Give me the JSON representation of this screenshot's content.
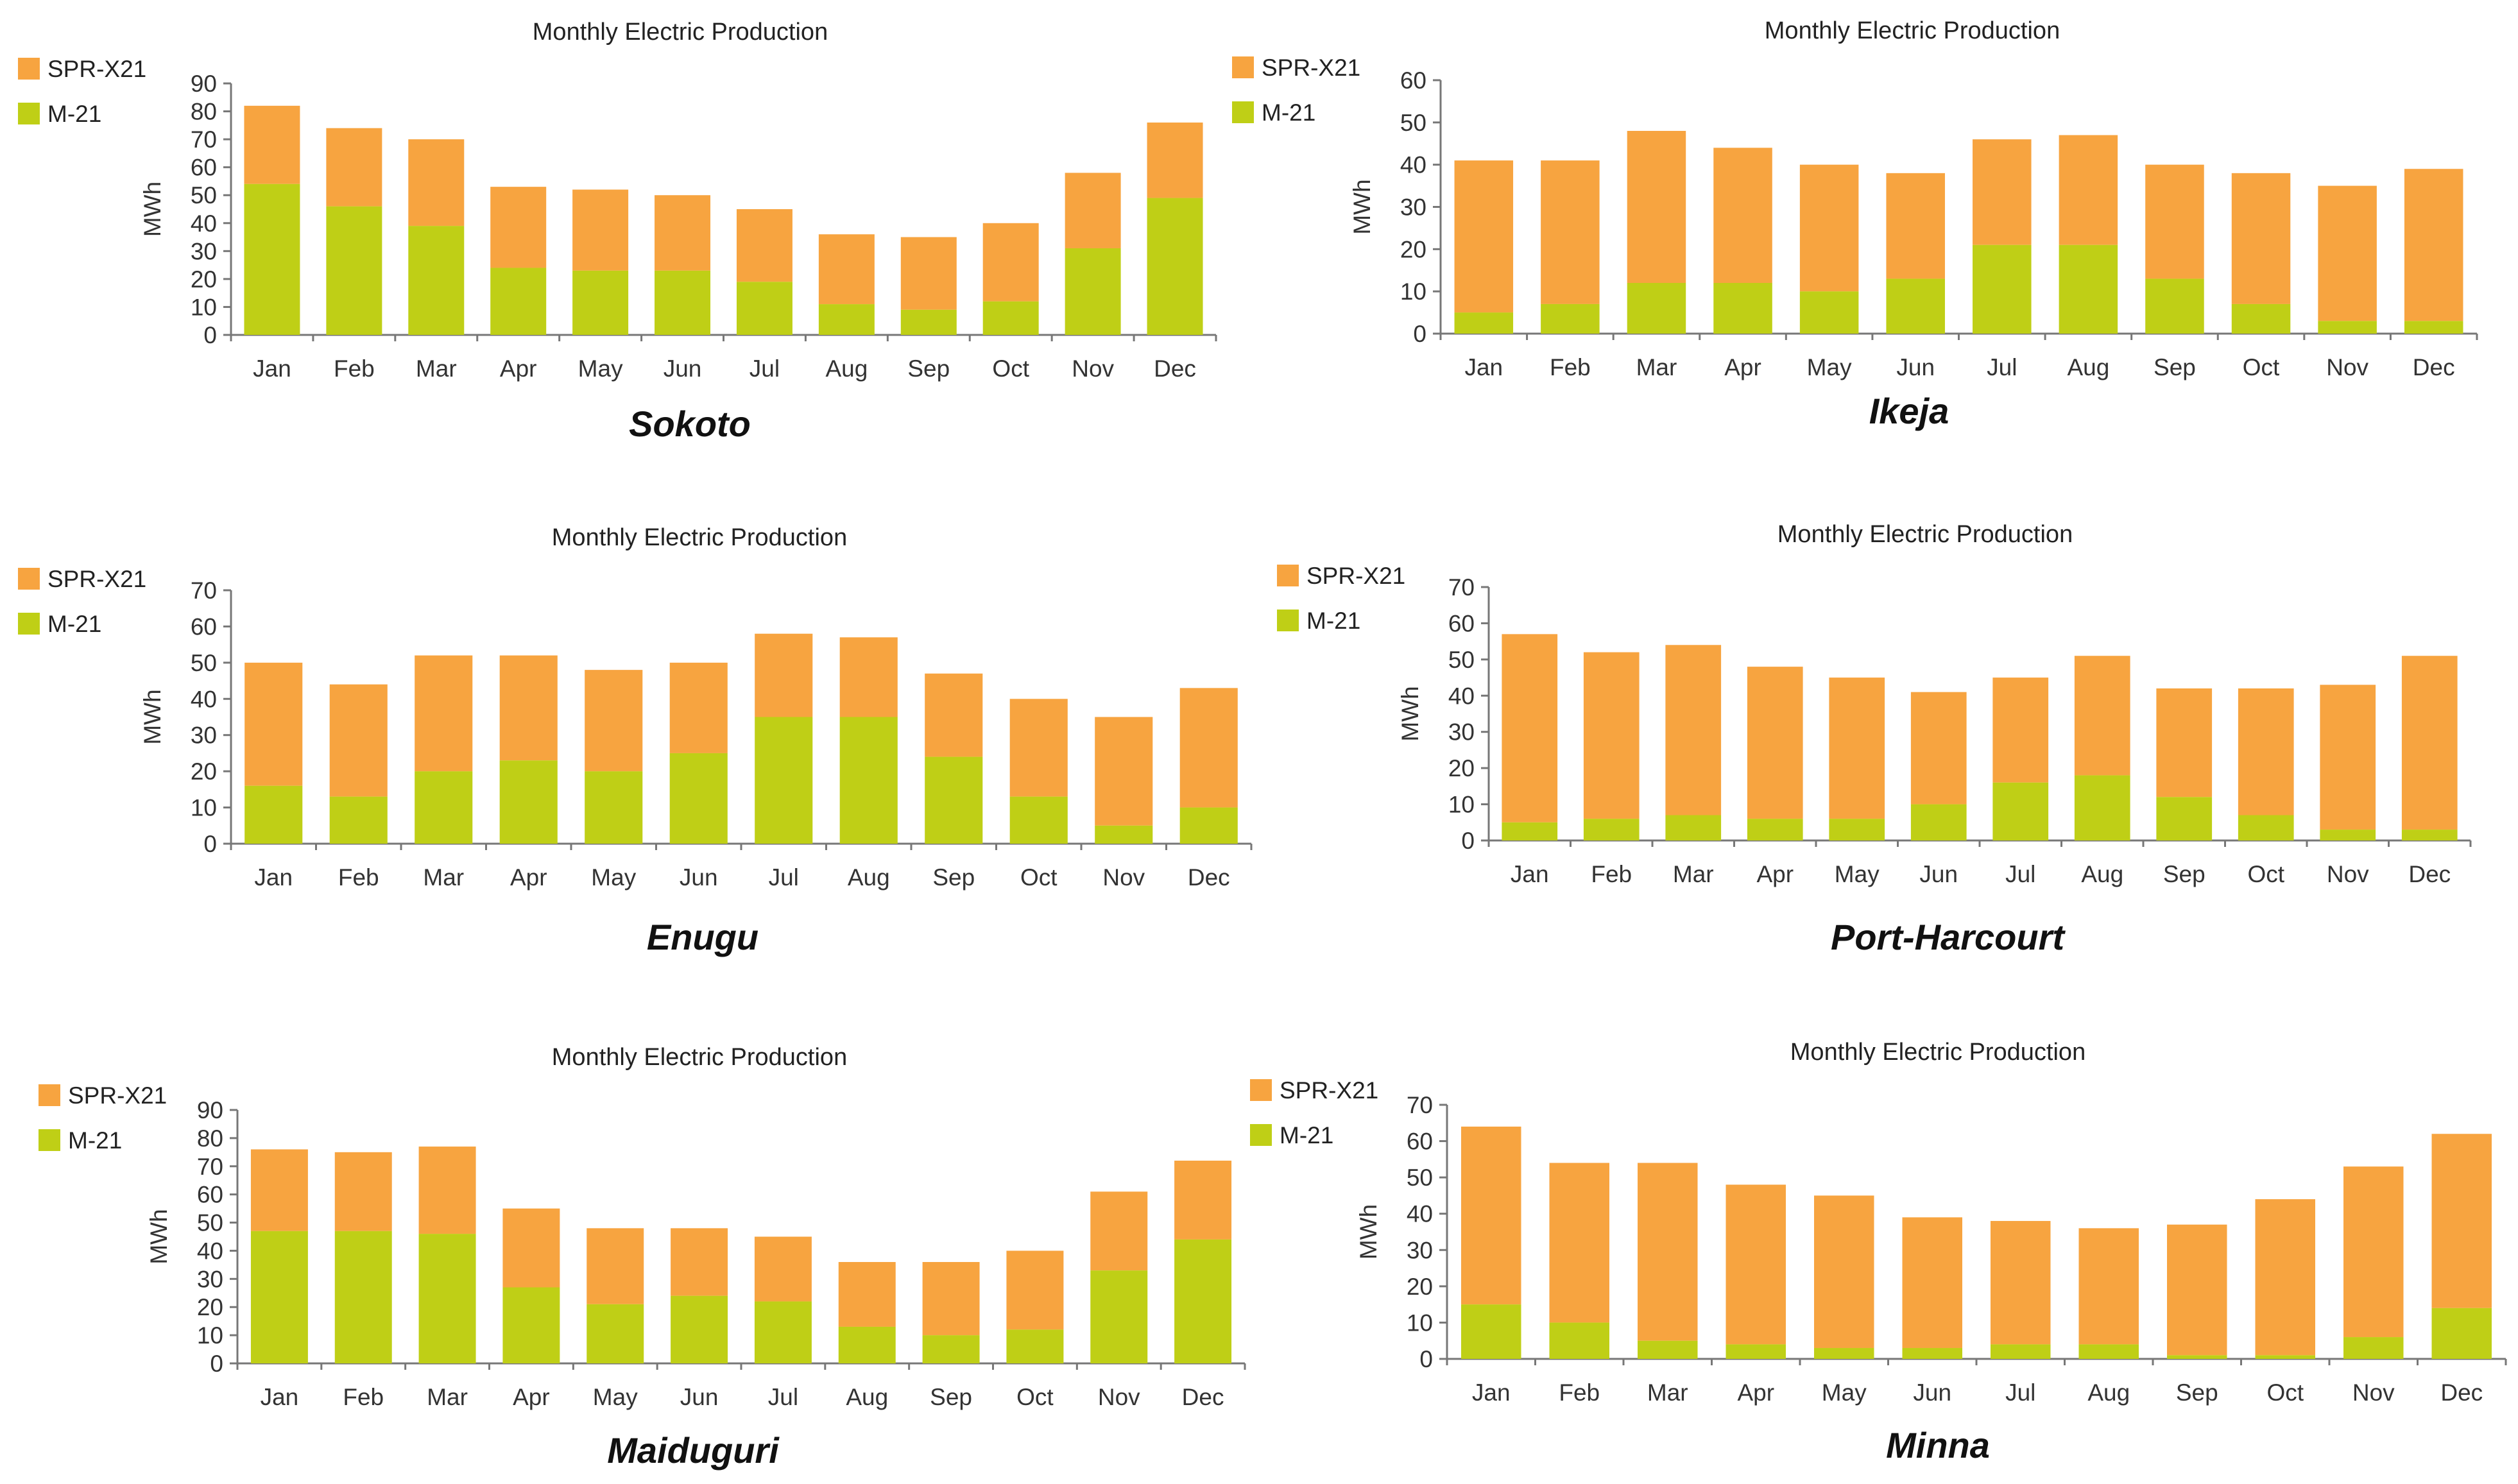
{
  "colors": {
    "spr": "#f7a440",
    "m21": "#bfcf16",
    "axis": "#777777"
  },
  "chart_data": [
    {
      "type": "bar",
      "stacked": true,
      "city": "Sokoto",
      "title": "Monthly Electric Production",
      "ylabel": "MWh",
      "xlabel": "",
      "ylim": [
        0,
        90
      ],
      "yticks": [
        "0",
        "10",
        "20",
        "30",
        "40",
        "50",
        "60",
        "70",
        "80",
        "90"
      ],
      "legend": [
        "SPR-X21",
        "M-21"
      ],
      "legend_position": "left",
      "categories": [
        "Jan",
        "Feb",
        "Mar",
        "Apr",
        "May",
        "Jun",
        "Jul",
        "Aug",
        "Sep",
        "Oct",
        "Nov",
        "Dec"
      ],
      "series": [
        {
          "name": "M-21",
          "values": [
            54,
            46,
            39,
            24,
            23,
            23,
            19,
            11,
            9,
            12,
            31,
            49
          ]
        },
        {
          "name": "SPR-X21",
          "values": [
            28,
            28,
            31,
            29,
            29,
            27,
            26,
            25,
            26,
            28,
            27,
            27
          ]
        }
      ]
    },
    {
      "type": "bar",
      "stacked": true,
      "city": "Ikeja",
      "title": "Monthly Electric Production",
      "ylabel": "MWh",
      "xlabel": "",
      "ylim": [
        0,
        60
      ],
      "yticks": [
        "0",
        "10",
        "20",
        "30",
        "40",
        "50",
        "60"
      ],
      "legend": [
        "SPR-X21",
        "M-21"
      ],
      "legend_position": "left",
      "categories": [
        "Jan",
        "Feb",
        "Mar",
        "Apr",
        "May",
        "Jun",
        "Jul",
        "Aug",
        "Sep",
        "Oct",
        "Nov",
        "Dec"
      ],
      "series": [
        {
          "name": "M-21",
          "values": [
            5,
            7,
            12,
            12,
            10,
            13,
            21,
            21,
            13,
            7,
            3,
            3
          ]
        },
        {
          "name": "SPR-X21",
          "values": [
            36,
            34,
            36,
            32,
            30,
            25,
            25,
            26,
            27,
            31,
            32,
            36
          ]
        }
      ]
    },
    {
      "type": "bar",
      "stacked": true,
      "city": "Enugu",
      "title": "Monthly Electric Production",
      "ylabel": "MWh",
      "xlabel": "",
      "ylim": [
        0,
        70
      ],
      "yticks": [
        "0",
        "10",
        "20",
        "30",
        "40",
        "50",
        "60",
        "70"
      ],
      "legend": [
        "SPR-X21",
        "M-21"
      ],
      "legend_position": "left",
      "categories": [
        "Jan",
        "Feb",
        "Mar",
        "Apr",
        "May",
        "Jun",
        "Jul",
        "Aug",
        "Sep",
        "Oct",
        "Nov",
        "Dec"
      ],
      "series": [
        {
          "name": "M-21",
          "values": [
            16,
            13,
            20,
            23,
            20,
            25,
            35,
            35,
            24,
            13,
            5,
            10
          ]
        },
        {
          "name": "SPR-X21",
          "values": [
            34,
            31,
            32,
            29,
            28,
            25,
            23,
            22,
            23,
            27,
            30,
            33
          ]
        }
      ]
    },
    {
      "type": "bar",
      "stacked": true,
      "city": "Port-Harcourt",
      "title": "Monthly Electric Production",
      "ylabel": "MWh",
      "xlabel": "",
      "ylim": [
        0,
        70
      ],
      "yticks": [
        "0",
        "10",
        "20",
        "30",
        "40",
        "50",
        "60",
        "70"
      ],
      "legend": [
        "SPR-X21",
        "M-21"
      ],
      "legend_position": "left",
      "categories": [
        "Jan",
        "Feb",
        "Mar",
        "Apr",
        "May",
        "Jun",
        "Jul",
        "Aug",
        "Sep",
        "Oct",
        "Nov",
        "Dec"
      ],
      "series": [
        {
          "name": "M-21",
          "values": [
            5,
            6,
            7,
            6,
            6,
            10,
            16,
            18,
            12,
            7,
            3,
            3
          ]
        },
        {
          "name": "SPR-X21",
          "values": [
            52,
            46,
            47,
            42,
            39,
            31,
            29,
            33,
            30,
            35,
            40,
            48
          ]
        }
      ]
    },
    {
      "type": "bar",
      "stacked": true,
      "city": "Maiduguri",
      "title": "Monthly Electric Production",
      "ylabel": "MWh",
      "xlabel": "",
      "ylim": [
        0,
        90
      ],
      "yticks": [
        "0",
        "10",
        "20",
        "30",
        "40",
        "50",
        "60",
        "70",
        "80",
        "90"
      ],
      "legend": [
        "SPR-X21",
        "M-21"
      ],
      "legend_position": "left",
      "categories": [
        "Jan",
        "Feb",
        "Mar",
        "Apr",
        "May",
        "Jun",
        "Jul",
        "Aug",
        "Sep",
        "Oct",
        "Nov",
        "Dec"
      ],
      "series": [
        {
          "name": "M-21",
          "values": [
            47,
            47,
            46,
            27,
            21,
            24,
            22,
            13,
            10,
            12,
            33,
            44
          ]
        },
        {
          "name": "SPR-X21",
          "values": [
            29,
            28,
            31,
            28,
            27,
            24,
            23,
            23,
            26,
            28,
            28,
            28
          ]
        }
      ]
    },
    {
      "type": "bar",
      "stacked": true,
      "city": "Minna",
      "title": "Monthly Electric Production",
      "ylabel": "MWh",
      "xlabel": "",
      "ylim": [
        0,
        70
      ],
      "yticks": [
        "0",
        "10",
        "20",
        "30",
        "40",
        "50",
        "60",
        "70"
      ],
      "legend": [
        "SPR-X21",
        "M-21"
      ],
      "legend_position": "left",
      "categories": [
        "Jan",
        "Feb",
        "Mar",
        "Apr",
        "May",
        "Jun",
        "Jul",
        "Aug",
        "Sep",
        "Oct",
        "Nov",
        "Dec"
      ],
      "series": [
        {
          "name": "M-21",
          "values": [
            15,
            10,
            5,
            4,
            3,
            3,
            4,
            4,
            1,
            1,
            6,
            14
          ]
        },
        {
          "name": "SPR-X21",
          "values": [
            49,
            44,
            49,
            44,
            42,
            36,
            34,
            32,
            36,
            43,
            47,
            48
          ]
        }
      ]
    }
  ]
}
